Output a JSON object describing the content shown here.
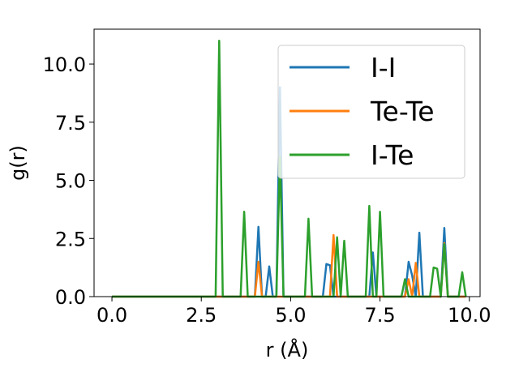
{
  "chart_data": {
    "type": "line",
    "xlabel": "r (Å)",
    "ylabel": "g(r)",
    "xlim": [
      -0.5,
      10.3
    ],
    "ylim": [
      0,
      11.5
    ],
    "x_ticks": [
      "0.0",
      "2.5",
      "5.0",
      "7.5",
      "10.0"
    ],
    "y_ticks": [
      "0.0",
      "2.5",
      "5.0",
      "7.5",
      "10.0"
    ],
    "legend_position": "top-right",
    "grid": false,
    "series": [
      {
        "name": "I-I",
        "color": "#1f77b4",
        "points": [
          [
            0,
            0
          ],
          [
            4.0,
            0
          ],
          [
            4.1,
            3.0
          ],
          [
            4.2,
            0
          ],
          [
            4.3,
            0
          ],
          [
            4.4,
            1.3
          ],
          [
            4.5,
            0
          ],
          [
            4.6,
            0
          ],
          [
            4.7,
            9.0
          ],
          [
            4.8,
            0
          ],
          [
            5.9,
            0
          ],
          [
            6.0,
            1.4
          ],
          [
            6.1,
            1.35
          ],
          [
            6.2,
            0
          ],
          [
            7.2,
            0
          ],
          [
            7.3,
            1.9
          ],
          [
            7.4,
            0
          ],
          [
            8.2,
            0
          ],
          [
            8.3,
            1.5
          ],
          [
            8.4,
            0.9
          ],
          [
            8.5,
            0
          ],
          [
            8.6,
            2.75
          ],
          [
            8.7,
            0
          ],
          [
            9.2,
            0
          ],
          [
            9.3,
            2.95
          ],
          [
            9.4,
            0
          ],
          [
            9.9,
            0
          ]
        ]
      },
      {
        "name": "Te-Te",
        "color": "#ff7f0e",
        "points": [
          [
            0,
            0
          ],
          [
            4.0,
            0
          ],
          [
            4.1,
            1.5
          ],
          [
            4.2,
            0
          ],
          [
            6.1,
            0
          ],
          [
            6.2,
            2.65
          ],
          [
            6.3,
            0
          ],
          [
            8.2,
            0
          ],
          [
            8.3,
            0.75
          ],
          [
            8.4,
            0
          ],
          [
            8.5,
            1.45
          ],
          [
            8.6,
            0
          ],
          [
            9.2,
            0
          ],
          [
            9.3,
            2.3
          ],
          [
            9.4,
            0
          ],
          [
            9.9,
            0
          ]
        ]
      },
      {
        "name": "I-Te",
        "color": "#2ca02c",
        "points": [
          [
            0,
            0
          ],
          [
            2.9,
            0
          ],
          [
            3.0,
            11.0
          ],
          [
            3.1,
            0
          ],
          [
            3.6,
            0
          ],
          [
            3.7,
            3.65
          ],
          [
            3.8,
            0
          ],
          [
            4.6,
            0
          ],
          [
            4.7,
            6.0
          ],
          [
            4.8,
            0
          ],
          [
            5.4,
            0
          ],
          [
            5.5,
            3.35
          ],
          [
            5.6,
            0
          ],
          [
            6.2,
            0
          ],
          [
            6.3,
            2.55
          ],
          [
            6.4,
            0
          ],
          [
            6.5,
            2.4
          ],
          [
            6.6,
            0
          ],
          [
            7.1,
            0
          ],
          [
            7.2,
            3.9
          ],
          [
            7.3,
            0
          ],
          [
            7.4,
            0
          ],
          [
            7.5,
            3.65
          ],
          [
            7.6,
            0
          ],
          [
            8.1,
            0
          ],
          [
            8.2,
            0.75
          ],
          [
            8.3,
            0
          ],
          [
            8.9,
            0
          ],
          [
            9.0,
            1.25
          ],
          [
            9.1,
            1.2
          ],
          [
            9.2,
            0
          ],
          [
            9.3,
            2.25
          ],
          [
            9.4,
            0
          ],
          [
            9.7,
            0
          ],
          [
            9.8,
            1.05
          ],
          [
            9.9,
            0
          ]
        ]
      }
    ]
  }
}
